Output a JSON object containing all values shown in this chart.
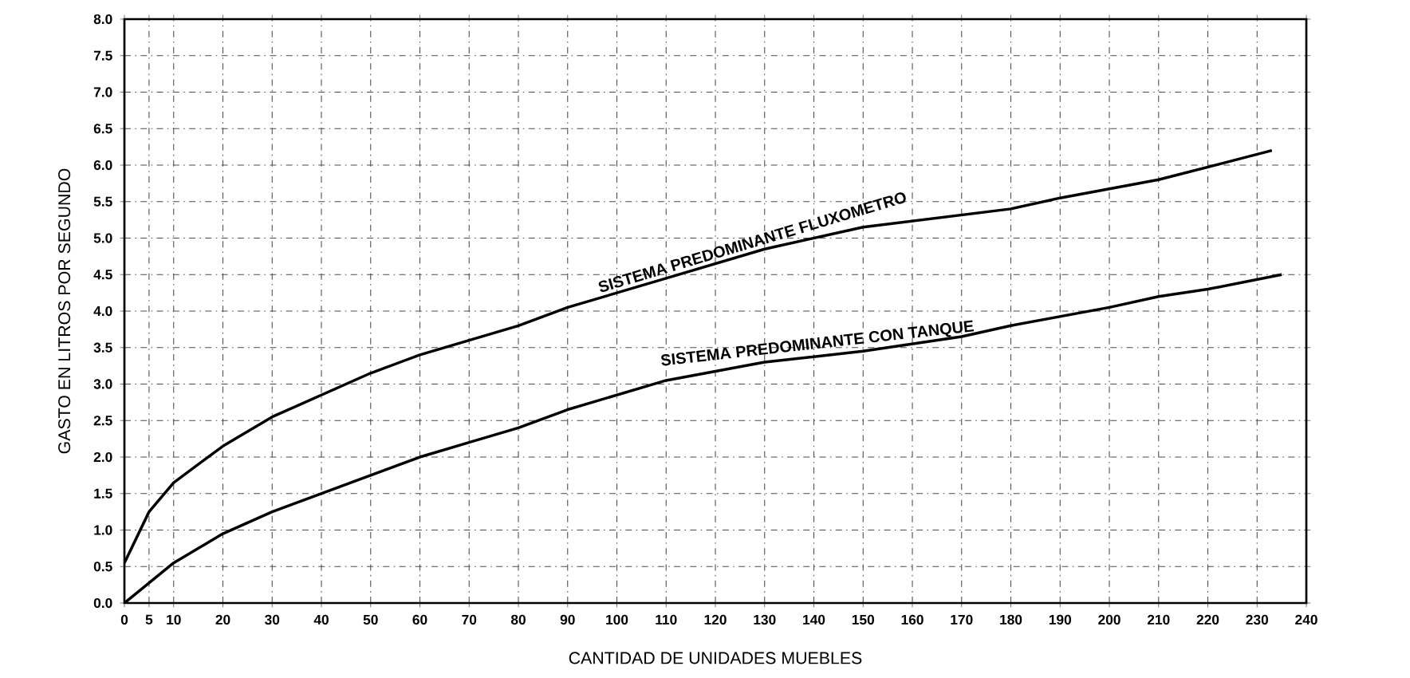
{
  "chart_data": {
    "type": "line",
    "xlabel": "CANTIDAD DE UNIDADES MUEBLES",
    "ylabel": "GASTO EN LITROS POR SEGUNDO",
    "xlim": [
      0,
      240
    ],
    "ylim": [
      0,
      8
    ],
    "xticks": [
      0,
      5,
      10,
      20,
      30,
      40,
      50,
      60,
      70,
      80,
      90,
      100,
      110,
      120,
      130,
      140,
      150,
      160,
      170,
      180,
      190,
      200,
      210,
      220,
      230,
      240
    ],
    "yticks": [
      {
        "value": 0,
        "label": "0.0"
      },
      {
        "value": 0.5,
        "label": "0.5"
      },
      {
        "value": 1,
        "label": "1.0"
      },
      {
        "value": 1.5,
        "label": "1.5"
      },
      {
        "value": 2,
        "label": "2.0"
      },
      {
        "value": 2.5,
        "label": "2.5"
      },
      {
        "value": 3,
        "label": "3.0"
      },
      {
        "value": 3.5,
        "label": "3.5"
      },
      {
        "value": 4,
        "label": "4.0"
      },
      {
        "value": 4.5,
        "label": "4.5"
      },
      {
        "value": 5,
        "label": "5.0"
      },
      {
        "value": 5.5,
        "label": "5.5"
      },
      {
        "value": 6,
        "label": "6.0"
      },
      {
        "value": 6.5,
        "label": "6.5"
      },
      {
        "value": 7,
        "label": "7.0"
      },
      {
        "value": 7.5,
        "label": "7.5"
      },
      {
        "value": 8,
        "label": "8.0"
      }
    ],
    "grid": true,
    "marker": "none",
    "line_style": "solid",
    "series": [
      {
        "name": "SISTEMA PREDOMINANTE FLUXOMETRO",
        "color": "#000000",
        "x": [
          0,
          5,
          10,
          20,
          30,
          40,
          50,
          60,
          70,
          80,
          90,
          100,
          110,
          130,
          150,
          180,
          190,
          210,
          233
        ],
        "values": [
          0.55,
          1.25,
          1.65,
          2.15,
          2.55,
          2.85,
          3.15,
          3.4,
          3.6,
          3.8,
          4.05,
          4.25,
          4.45,
          4.85,
          5.15,
          5.4,
          5.55,
          5.8,
          6.2
        ]
      },
      {
        "name": "SISTEMA PREDOMINANTE CON TANQUE",
        "color": "#000000",
        "x": [
          0,
          10,
          20,
          30,
          40,
          50,
          60,
          70,
          80,
          90,
          100,
          110,
          130,
          150,
          170,
          180,
          200,
          210,
          220,
          235
        ],
        "values": [
          0,
          0.55,
          0.95,
          1.25,
          1.5,
          1.75,
          2,
          2.2,
          2.4,
          2.65,
          2.85,
          3.05,
          3.3,
          3.45,
          3.65,
          3.8,
          4.05,
          4.2,
          4.3,
          4.5
        ]
      }
    ]
  }
}
